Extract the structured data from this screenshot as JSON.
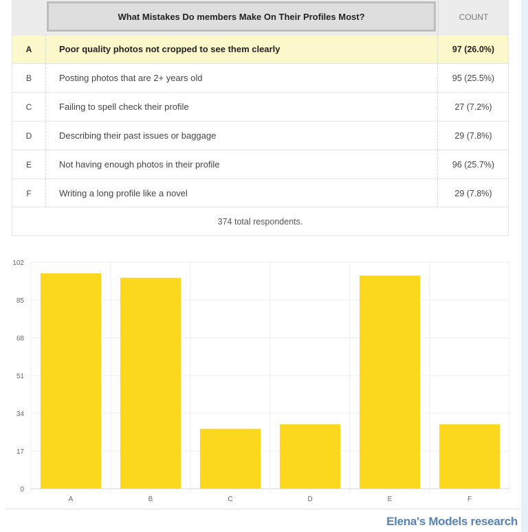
{
  "table": {
    "question": "What Mistakes Do members Make On Their Profiles Most?",
    "count_header": "COUNT",
    "rows": [
      {
        "letter": "A",
        "answer": "Poor quality photos not cropped to see them clearly",
        "count": "97 (26.0%)"
      },
      {
        "letter": "B",
        "answer": "Posting photos that are 2+ years old",
        "count": "95 (25.5%)"
      },
      {
        "letter": "C",
        "answer": "Failing to spell check their profile",
        "count": "27 (7.2%)"
      },
      {
        "letter": "D",
        "answer": "Describing their past issues or baggage",
        "count": "29 (7.8%)"
      },
      {
        "letter": "E",
        "answer": "Not having enough photos in their profile",
        "count": "96 (25.7%)"
      },
      {
        "letter": "F",
        "answer": "Writing a long profile like a novel",
        "count": "29 (7.8%)"
      }
    ],
    "total": "374 total respondents."
  },
  "chart_data": {
    "type": "bar",
    "categories": [
      "A",
      "B",
      "C",
      "D",
      "E",
      "F"
    ],
    "values": [
      97,
      95,
      27,
      29,
      96,
      29
    ],
    "title": "",
    "xlabel": "",
    "ylabel": "",
    "ylim": [
      0,
      102
    ],
    "yticks": [
      0,
      17,
      34,
      51,
      68,
      85,
      102
    ],
    "grid": true,
    "bar_color": "#fbd71e"
  },
  "credit": "Elena's Models research"
}
